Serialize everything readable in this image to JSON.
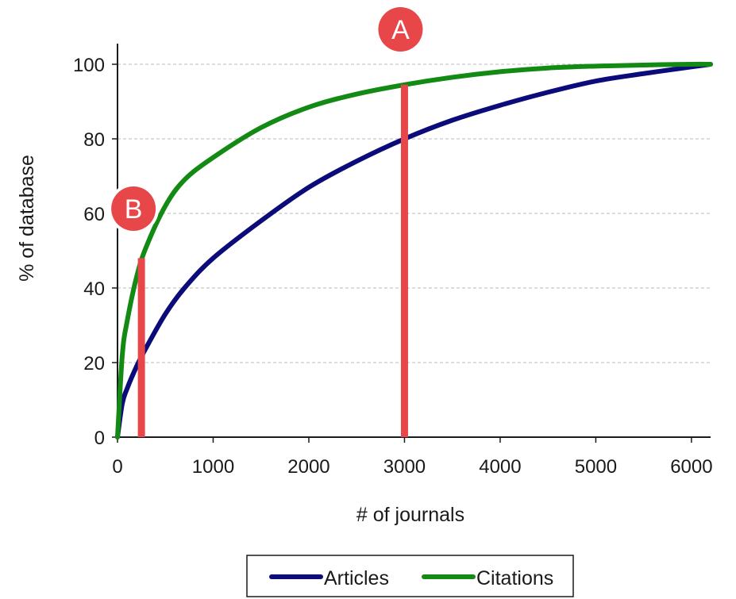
{
  "chart_data": {
    "type": "line",
    "title": "",
    "xlabel": "# of journals",
    "ylabel": "% of database",
    "xlim": [
      0,
      6200
    ],
    "ylim": [
      0,
      100
    ],
    "x_ticks": [
      "0",
      "1000",
      "2000",
      "3000",
      "4000",
      "5000",
      "6000"
    ],
    "y_ticks": [
      "0",
      "20",
      "40",
      "60",
      "80",
      "100"
    ],
    "grid": "horizontal dashed",
    "legend_position": "bottom",
    "series": [
      {
        "name": "Articles",
        "color": "#0b0b7a",
        "x": [
          0,
          50,
          100,
          200,
          300,
          500,
          700,
          1000,
          1500,
          2000,
          2500,
          3000,
          3500,
          4000,
          4500,
          5000,
          5500,
          6000,
          6200
        ],
        "y": [
          0,
          9,
          13,
          19,
          24,
          33,
          40,
          48,
          58,
          67,
          74,
          80,
          85,
          89,
          92.5,
          95.5,
          97.5,
          99.3,
          100
        ]
      },
      {
        "name": "Citations",
        "color": "#138a13",
        "x": [
          0,
          50,
          100,
          200,
          300,
          500,
          700,
          1000,
          1500,
          2000,
          2500,
          3000,
          3500,
          4000,
          4500,
          5000,
          5500,
          6000,
          6200
        ],
        "y": [
          0,
          22,
          31,
          43,
          51,
          62,
          69,
          75,
          83,
          88.5,
          92,
          94.5,
          96.5,
          98,
          99,
          99.5,
          99.8,
          100,
          100
        ]
      }
    ],
    "markers": [
      {
        "label": "A",
        "x": 3000,
        "y_top": 94.5
      },
      {
        "label": "B",
        "x": 250,
        "y_top": 48
      }
    ]
  }
}
